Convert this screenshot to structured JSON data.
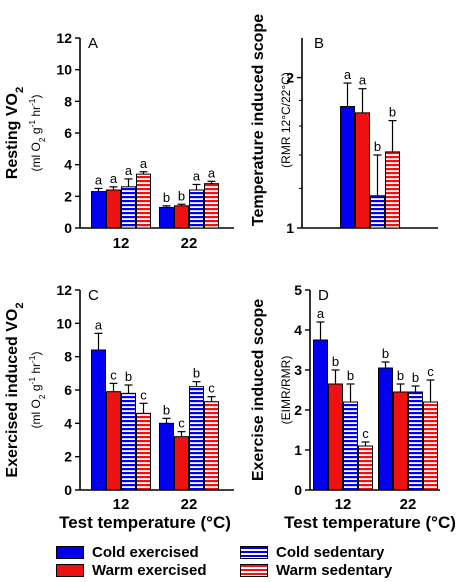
{
  "colors": {
    "cold_blue": "#0000ee",
    "warm_red": "#ee1111",
    "axis": "#000000"
  },
  "legend": {
    "items": [
      {
        "label": "Cold exercised",
        "color": "#0000ee",
        "pattern": "solid"
      },
      {
        "label": "Cold sedentary",
        "color": "#0000ee",
        "pattern": "stripes"
      },
      {
        "label": "Warm exercised",
        "color": "#ee1111",
        "pattern": "solid"
      },
      {
        "label": "Warm sedentary",
        "color": "#ee1111",
        "pattern": "stripes"
      }
    ]
  },
  "chart_data": [
    {
      "panel": "A",
      "type": "bar",
      "ylabel": "Resting VO2",
      "ylabel_units": "(ml O2 g-1 hr-1)",
      "xlabel": "",
      "ylim": [
        0,
        12
      ],
      "yticks": [
        "0",
        "2",
        "4",
        "6",
        "8",
        "10",
        "12"
      ],
      "categories": [
        "12",
        "22"
      ],
      "series": [
        {
          "name": "Cold exercised",
          "values": [
            2.3,
            1.3
          ],
          "errors": [
            0.2,
            0.1
          ],
          "letters": [
            "a",
            "b"
          ]
        },
        {
          "name": "Warm exercised",
          "values": [
            2.4,
            1.4
          ],
          "errors": [
            0.2,
            0.1
          ],
          "letters": [
            "a",
            "b"
          ]
        },
        {
          "name": "Cold sedentary",
          "values": [
            2.6,
            2.4
          ],
          "errors": [
            0.5,
            0.35
          ],
          "letters": [
            "a",
            "a"
          ]
        },
        {
          "name": "Warm sedentary",
          "values": [
            3.4,
            2.8
          ],
          "errors": [
            0.15,
            0.15
          ],
          "letters": [
            "a",
            "a"
          ]
        }
      ]
    },
    {
      "panel": "B",
      "type": "bar",
      "ylabel": "Temperature induced scope",
      "ylabel_units": "(RMR 12°C/22°C)",
      "xlabel": "",
      "log_scale": true,
      "ylim": [
        1,
        2.4
      ],
      "yticks": [
        "1",
        "2"
      ],
      "categories": [
        ""
      ],
      "series": [
        {
          "name": "Cold exercised",
          "values": [
            1.75
          ],
          "errors": [
            0.2
          ],
          "letters": [
            "a"
          ]
        },
        {
          "name": "Warm exercised",
          "values": [
            1.7
          ],
          "errors": [
            0.2
          ],
          "letters": [
            "a"
          ]
        },
        {
          "name": "Cold sedentary",
          "values": [
            1.16
          ],
          "errors": [
            0.24
          ],
          "letters": [
            "b"
          ]
        },
        {
          "name": "Warm sedentary",
          "values": [
            1.42
          ],
          "errors": [
            0.22
          ],
          "letters": [
            "b"
          ]
        }
      ]
    },
    {
      "panel": "C",
      "type": "bar",
      "ylabel": "Exercised induced VO2",
      "ylabel_units": "(ml O2 g-1 hr-1)",
      "xlabel": "Test temperature (°C)",
      "ylim": [
        0,
        12
      ],
      "yticks": [
        "0",
        "2",
        "4",
        "6",
        "8",
        "10",
        "12"
      ],
      "categories": [
        "12",
        "22"
      ],
      "series": [
        {
          "name": "Cold exercised",
          "values": [
            8.4,
            4.0
          ],
          "errors": [
            1.0,
            0.3
          ],
          "letters": [
            "a",
            "b"
          ]
        },
        {
          "name": "Warm exercised",
          "values": [
            5.9,
            3.2
          ],
          "errors": [
            0.5,
            0.3
          ],
          "letters": [
            "c",
            "c"
          ]
        },
        {
          "name": "Cold sedentary",
          "values": [
            5.8,
            6.2
          ],
          "errors": [
            0.5,
            0.3
          ],
          "letters": [
            "b",
            "b"
          ]
        },
        {
          "name": "Warm sedentary",
          "values": [
            4.6,
            5.3
          ],
          "errors": [
            0.6,
            0.3
          ],
          "letters": [
            "c",
            "c"
          ]
        }
      ]
    },
    {
      "panel": "D",
      "type": "bar",
      "ylabel": "Exercise induced scope",
      "ylabel_units": "(EIMR/RMR)",
      "xlabel": "Test temperature (°C)",
      "ylim": [
        0,
        5
      ],
      "yticks": [
        "0",
        "1",
        "2",
        "3",
        "4",
        "5"
      ],
      "categories": [
        "12",
        "22"
      ],
      "series": [
        {
          "name": "Cold exercised",
          "values": [
            3.75,
            3.05
          ],
          "errors": [
            0.45,
            0.15
          ],
          "letters": [
            "a",
            "b"
          ]
        },
        {
          "name": "Warm exercised",
          "values": [
            2.65,
            2.45
          ],
          "errors": [
            0.35,
            0.2
          ],
          "letters": [
            "b",
            "b"
          ]
        },
        {
          "name": "Cold sedentary",
          "values": [
            2.2,
            2.45
          ],
          "errors": [
            0.45,
            0.15
          ],
          "letters": [
            "b",
            "b"
          ]
        },
        {
          "name": "Warm sedentary",
          "values": [
            1.1,
            2.2
          ],
          "errors": [
            0.1,
            0.55
          ],
          "letters": [
            "c",
            "c"
          ]
        }
      ]
    }
  ]
}
